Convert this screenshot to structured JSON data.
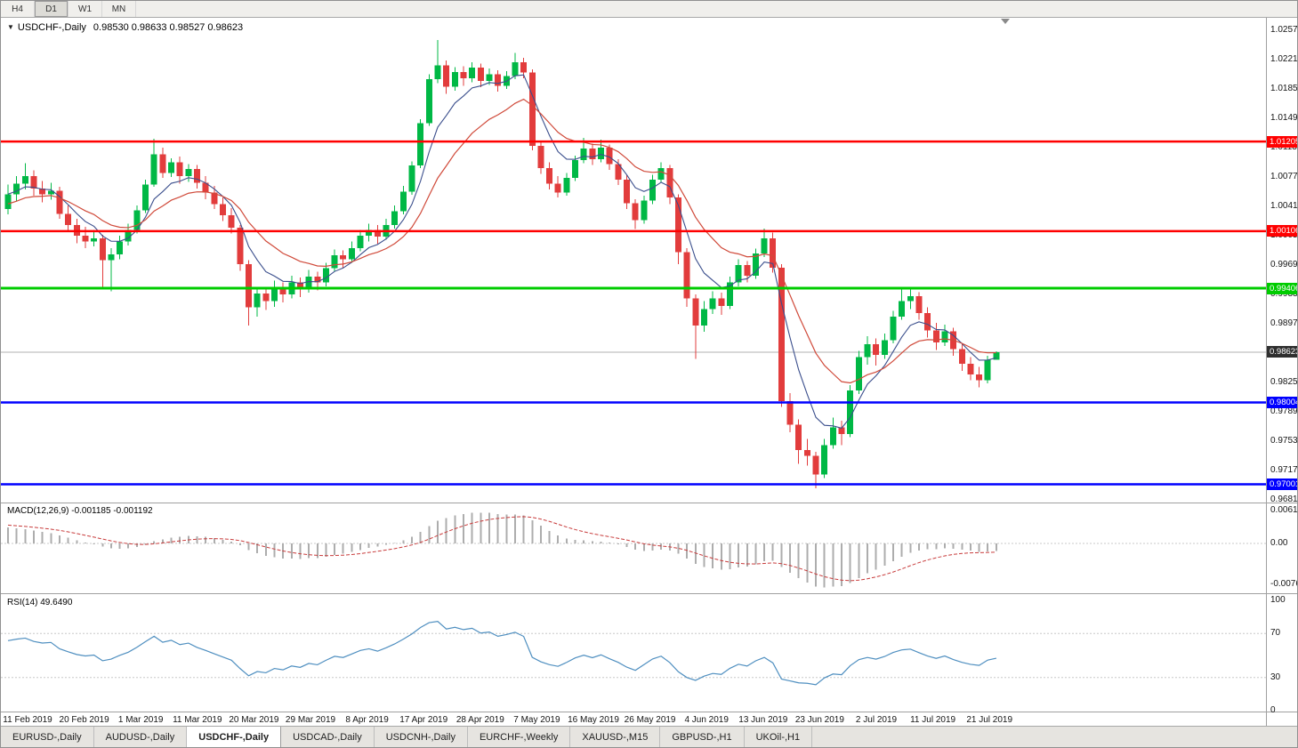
{
  "icons": {
    "header_collapse": "▼"
  },
  "toolbar": {
    "timeframes": [
      {
        "label": "H4",
        "active": false
      },
      {
        "label": "D1",
        "active": true
      },
      {
        "label": "W1",
        "active": false
      },
      {
        "label": "MN",
        "active": false
      }
    ]
  },
  "header": {
    "symbol": "USDCHF-,Daily",
    "ohlc_text": "0.98530 0.98633 0.98527 0.98623"
  },
  "indicator_labels": {
    "macd": "MACD(12,26,9) -0.001185 -0.001192",
    "rsi": "RSI(14) 49.6490"
  },
  "tabs": [
    {
      "label": "EURUSD-,Daily",
      "active": false
    },
    {
      "label": "AUDUSD-,Daily",
      "active": false
    },
    {
      "label": "USDCHF-,Daily",
      "active": true
    },
    {
      "label": "USDCAD-,Daily",
      "active": false
    },
    {
      "label": "USDCNH-,Daily",
      "active": false
    },
    {
      "label": "EURCHF-,Weekly",
      "active": false
    },
    {
      "label": "XAUUSD-,M15",
      "active": false
    },
    {
      "label": "GBPUSD-,H1",
      "active": false
    },
    {
      "label": "UKOil-,H1",
      "active": false
    }
  ],
  "colors": {
    "up": "#00B845",
    "down": "#E23C3C",
    "ma_fast": "#3A4E8C",
    "ma_slow": "#D04A3A",
    "macd_bar": "#ADADAD",
    "macd_signal": "#C83C3C",
    "rsi_line": "#4F8FC0",
    "red": "#FF0000",
    "green": "#00CC00",
    "blue": "#0000FF",
    "current_price_line": "#B0B0B0",
    "current_price_bg": "#2F2F2F",
    "panel_border": "#A0A0A0",
    "level_dotted": "#C8C8C8"
  },
  "chart_data": {
    "type": "candlestick",
    "title": "USDCHF-,Daily",
    "y_range": [
      0.9681,
      1.0257
    ],
    "y_tick_labels": [
      "1.02570",
      "1.02210",
      "1.01850",
      "1.01490",
      "1.01130",
      "1.00770",
      "1.00410",
      "1.00050",
      "0.99690",
      "0.99330",
      "0.98970",
      "0.98610",
      "0.98250",
      "0.97890",
      "0.97530",
      "0.97170",
      "0.96810"
    ],
    "x_tick_labels": [
      "11 Feb 2019",
      "20 Feb 2019",
      "1 Mar 2019",
      "11 Mar 2019",
      "20 Mar 2019",
      "29 Mar 2019",
      "8 Apr 2019",
      "17 Apr 2019",
      "28 Apr 2019",
      "7 May 2019",
      "16 May 2019",
      "26 May 2019",
      "4 Jun 2019",
      "13 Jun 2019",
      "23 Jun 2019",
      "2 Jul 2019",
      "11 Jul 2019",
      "21 Jul 2019"
    ],
    "hlines": [
      {
        "price": 1.01205,
        "label": "1.01205",
        "color": "red"
      },
      {
        "price": 1.00106,
        "label": "1.00106",
        "color": "red"
      },
      {
        "price": 0.99406,
        "label": "0.99406",
        "color": "green"
      },
      {
        "price": 0.98004,
        "label": "0.98004",
        "color": "blue"
      },
      {
        "price": 0.97001,
        "label": "0.97001",
        "color": "blue"
      }
    ],
    "current_price": {
      "value": 0.98623,
      "label": "0.98623"
    },
    "last_ohlc": {
      "open": 0.9853,
      "high": 0.98633,
      "low": 0.98527,
      "close": 0.98623
    },
    "moving_averages": [
      {
        "type": "ema",
        "period": 6,
        "color": "ma_fast"
      },
      {
        "type": "ema",
        "period": 14,
        "color": "ma_slow"
      }
    ],
    "macd": {
      "fast": 12,
      "slow": 26,
      "signal": 9,
      "current_macd": -0.001185,
      "current_signal": -0.001192,
      "y_tick_labels": [
        "0.00613",
        "0.00",
        "-0.00761"
      ]
    },
    "rsi": {
      "period": 14,
      "current": 49.649,
      "y_tick_labels": [
        "100",
        "70",
        "30",
        "0"
      ],
      "levels": [
        70,
        30
      ]
    },
    "candles": [
      [
        1.0038,
        1.0068,
        1.0031,
        1.0056
      ],
      [
        1.0056,
        1.0078,
        1.0047,
        1.0069
      ],
      [
        1.0069,
        1.0094,
        1.0062,
        1.0078
      ],
      [
        1.0078,
        1.0085,
        1.0054,
        1.0063
      ],
      [
        1.0063,
        1.0072,
        1.0046,
        1.0056
      ],
      [
        1.0056,
        1.007,
        1.0049,
        1.006
      ],
      [
        1.006,
        1.0065,
        1.0026,
        1.0032
      ],
      [
        1.0032,
        1.0042,
        1.001,
        1.0018
      ],
      [
        1.0018,
        1.0026,
        0.9996,
        1.0005
      ],
      [
        1.0005,
        1.0016,
        0.999,
        0.9998
      ],
      [
        0.9998,
        1.0012,
        0.9992,
        1.0002
      ],
      [
        1.0002,
        1.0006,
        0.994,
        0.9975
      ],
      [
        0.9975,
        0.999,
        0.9937,
        0.9982
      ],
      [
        0.9982,
        1.0005,
        0.9976,
        0.9998
      ],
      [
        0.9998,
        1.002,
        0.9993,
        1.0012
      ],
      [
        1.0012,
        1.0042,
        1.0008,
        1.0036
      ],
      [
        1.0036,
        1.0074,
        1.0033,
        1.0068
      ],
      [
        1.0068,
        1.0124,
        1.0065,
        1.0105
      ],
      [
        1.0105,
        1.0113,
        1.0076,
        1.0082
      ],
      [
        1.0082,
        1.01,
        1.0077,
        1.0095
      ],
      [
        1.0095,
        1.0102,
        1.0069,
        1.0078
      ],
      [
        1.0078,
        1.0093,
        1.0071,
        1.0087
      ],
      [
        1.0087,
        1.0092,
        1.0063,
        1.007
      ],
      [
        1.007,
        1.0078,
        1.005,
        1.0058
      ],
      [
        1.0058,
        1.0066,
        1.0038,
        1.0044
      ],
      [
        1.0044,
        1.0052,
        1.0023,
        1.003
      ],
      [
        1.003,
        1.0039,
        1.0008,
        1.0015
      ],
      [
        1.0015,
        1.0018,
        0.9962,
        0.997
      ],
      [
        0.997,
        0.9975,
        0.9895,
        0.9917
      ],
      [
        0.9917,
        0.9942,
        0.9906,
        0.9934
      ],
      [
        0.9934,
        0.9941,
        0.9914,
        0.9925
      ],
      [
        0.9925,
        0.995,
        0.9918,
        0.9942
      ],
      [
        0.9942,
        0.9948,
        0.9923,
        0.9933
      ],
      [
        0.9933,
        0.9956,
        0.9928,
        0.9948
      ],
      [
        0.9948,
        0.9954,
        0.993,
        0.994
      ],
      [
        0.994,
        0.9963,
        0.9935,
        0.9955
      ],
      [
        0.9955,
        0.9961,
        0.9938,
        0.9948
      ],
      [
        0.9948,
        0.9972,
        0.9943,
        0.9965
      ],
      [
        0.9965,
        0.9988,
        0.9961,
        0.9981
      ],
      [
        0.9981,
        0.9987,
        0.9966,
        0.9976
      ],
      [
        0.9976,
        0.9998,
        0.9972,
        0.999
      ],
      [
        0.999,
        1.0012,
        0.9986,
        1.0005
      ],
      [
        1.0005,
        1.002,
        0.9998,
        1.0012
      ],
      [
        1.0012,
        1.0018,
        0.9995,
        1.0004
      ],
      [
        1.0004,
        1.0026,
        1.0,
        1.0018
      ],
      [
        1.0018,
        1.0042,
        1.0014,
        1.0035
      ],
      [
        1.0035,
        1.0066,
        1.0031,
        1.0059
      ],
      [
        1.0059,
        1.0096,
        1.0055,
        1.0091
      ],
      [
        1.0091,
        1.0148,
        1.0088,
        1.0143
      ],
      [
        1.0143,
        1.0203,
        1.014,
        1.0197
      ],
      [
        1.0197,
        1.0245,
        1.0192,
        1.0214
      ],
      [
        1.0214,
        1.022,
        1.0179,
        1.0188
      ],
      [
        1.0188,
        1.0212,
        1.0183,
        1.0206
      ],
      [
        1.0206,
        1.0213,
        1.0189,
        1.0198
      ],
      [
        1.0198,
        1.0218,
        1.0193,
        1.0211
      ],
      [
        1.0211,
        1.0216,
        1.0187,
        1.0195
      ],
      [
        1.0195,
        1.021,
        1.019,
        1.0203
      ],
      [
        1.0203,
        1.0208,
        1.0182,
        1.0189
      ],
      [
        1.0189,
        1.0207,
        1.0185,
        1.0201
      ],
      [
        1.0201,
        1.0229,
        1.0197,
        1.0218
      ],
      [
        1.0218,
        1.0223,
        1.0198,
        1.0205
      ],
      [
        1.0205,
        1.0209,
        1.011,
        1.0115
      ],
      [
        1.0115,
        1.0122,
        1.0081,
        1.0088
      ],
      [
        1.0088,
        1.0095,
        1.0062,
        1.0069
      ],
      [
        1.0069,
        1.0078,
        1.0052,
        1.0058
      ],
      [
        1.0058,
        1.0082,
        1.0054,
        1.0076
      ],
      [
        1.0076,
        1.0103,
        1.0072,
        1.0098
      ],
      [
        1.0098,
        1.0125,
        1.0094,
        1.0112
      ],
      [
        1.0112,
        1.0118,
        1.0092,
        1.0099
      ],
      [
        1.0099,
        1.0123,
        1.0095,
        1.0113
      ],
      [
        1.0113,
        1.0117,
        1.0086,
        1.0093
      ],
      [
        1.0093,
        1.0099,
        1.0067,
        1.0074
      ],
      [
        1.0074,
        1.0079,
        1.0038,
        1.0045
      ],
      [
        1.0045,
        1.005,
        1.0013,
        1.0024
      ],
      [
        1.0024,
        1.0054,
        1.002,
        1.0048
      ],
      [
        1.0048,
        1.008,
        1.0044,
        1.0074
      ],
      [
        1.0074,
        1.0095,
        1.007,
        1.0088
      ],
      [
        1.0088,
        1.0092,
        1.0044,
        1.0052
      ],
      [
        1.0052,
        1.0056,
        0.997,
        0.9985
      ],
      [
        0.9985,
        0.999,
        0.9918,
        0.9928
      ],
      [
        0.9928,
        0.9933,
        0.9854,
        0.9895
      ],
      [
        0.9895,
        0.9925,
        0.9887,
        0.9915
      ],
      [
        0.9915,
        0.9937,
        0.9909,
        0.9928
      ],
      [
        0.9928,
        0.9935,
        0.9908,
        0.9919
      ],
      [
        0.9919,
        0.9955,
        0.9915,
        0.9948
      ],
      [
        0.9948,
        0.9976,
        0.9943,
        0.9969
      ],
      [
        0.9969,
        0.9974,
        0.9948,
        0.9956
      ],
      [
        0.9956,
        0.9989,
        0.9952,
        0.9983
      ],
      [
        0.9983,
        1.0014,
        0.9979,
        1.0002
      ],
      [
        1.0002,
        1.0009,
        0.996,
        0.9966
      ],
      [
        0.9966,
        0.997,
        0.9795,
        0.9802
      ],
      [
        0.9802,
        0.9812,
        0.9764,
        0.9773
      ],
      [
        0.9773,
        0.978,
        0.9725,
        0.9742
      ],
      [
        0.9742,
        0.9756,
        0.9723,
        0.9735
      ],
      [
        0.9735,
        0.974,
        0.9695,
        0.9712
      ],
      [
        0.9712,
        0.9756,
        0.9708,
        0.9748
      ],
      [
        0.9748,
        0.9782,
        0.9744,
        0.977
      ],
      [
        0.977,
        0.9778,
        0.9748,
        0.9762
      ],
      [
        0.9762,
        0.9822,
        0.9758,
        0.9815
      ],
      [
        0.9815,
        0.9864,
        0.9811,
        0.9856
      ],
      [
        0.9856,
        0.9882,
        0.9847,
        0.9872
      ],
      [
        0.9872,
        0.9879,
        0.9846,
        0.9859
      ],
      [
        0.9859,
        0.9885,
        0.9854,
        0.9877
      ],
      [
        0.9877,
        0.9913,
        0.9873,
        0.9906
      ],
      [
        0.9906,
        0.994,
        0.9902,
        0.9925
      ],
      [
        0.9925,
        0.9942,
        0.9915,
        0.9931
      ],
      [
        0.9931,
        0.9936,
        0.9902,
        0.991
      ],
      [
        0.991,
        0.9917,
        0.988,
        0.9889
      ],
      [
        0.9889,
        0.9898,
        0.9865,
        0.9874
      ],
      [
        0.9874,
        0.9896,
        0.987,
        0.9888
      ],
      [
        0.9888,
        0.9892,
        0.9858,
        0.9866
      ],
      [
        0.9866,
        0.9873,
        0.9839,
        0.9848
      ],
      [
        0.9848,
        0.9856,
        0.9828,
        0.9835
      ],
      [
        0.9835,
        0.9844,
        0.9819,
        0.9828
      ],
      [
        0.9828,
        0.9858,
        0.9824,
        0.9853
      ],
      [
        0.9853,
        0.98633,
        0.98527,
        0.98623
      ]
    ]
  }
}
